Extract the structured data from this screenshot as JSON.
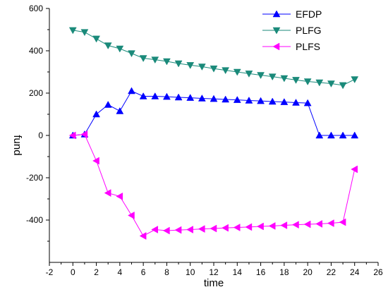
{
  "chart_data": {
    "type": "line",
    "xlabel": "time",
    "ylabel": "fund",
    "xlim": [
      -2,
      26
    ],
    "ylim": [
      -600,
      600
    ],
    "x_ticks": [
      -2,
      0,
      2,
      4,
      6,
      8,
      10,
      12,
      14,
      16,
      18,
      20,
      22,
      24,
      26
    ],
    "y_ticks": [
      -400,
      -200,
      0,
      200,
      400,
      600
    ],
    "grid": false,
    "legend_position": "top-right",
    "x": [
      0,
      1,
      2,
      3,
      4,
      5,
      6,
      7,
      8,
      9,
      10,
      11,
      12,
      13,
      14,
      15,
      16,
      17,
      18,
      19,
      20,
      21,
      22,
      23,
      24
    ],
    "series": [
      {
        "name": "EFDP",
        "color": "#0000ff",
        "marker": "triangle-up",
        "values": [
          0,
          5,
          100,
          145,
          115,
          210,
          185,
          185,
          183,
          180,
          178,
          175,
          173,
          170,
          168,
          165,
          163,
          160,
          158,
          155,
          153,
          0,
          0,
          0,
          0
        ]
      },
      {
        "name": "PLFG",
        "color": "#1a8a7a",
        "marker": "triangle-down",
        "values": [
          497,
          488,
          457,
          425,
          410,
          388,
          365,
          358,
          350,
          340,
          332,
          325,
          316,
          308,
          300,
          292,
          285,
          278,
          270,
          262,
          255,
          250,
          245,
          237,
          265
        ]
      },
      {
        "name": "PLFS",
        "color": "#ff00ff",
        "marker": "triangle-left",
        "values": [
          0,
          5,
          -120,
          -272,
          -288,
          -378,
          -475,
          -445,
          -450,
          -447,
          -445,
          -442,
          -440,
          -437,
          -435,
          -433,
          -430,
          -428,
          -425,
          -422,
          -420,
          -418,
          -415,
          -410,
          -160
        ]
      }
    ]
  }
}
